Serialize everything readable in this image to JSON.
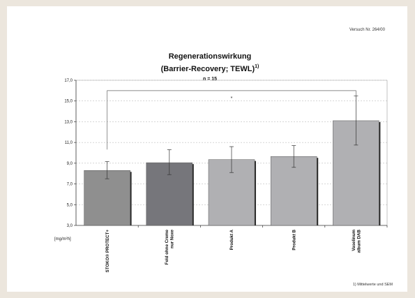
{
  "header": {
    "doc_number": "Versuch Nr. 264/00"
  },
  "chart_data": {
    "type": "bar",
    "title": "Regenerationswirkung",
    "subtitle": "(Barrier-Recovery; TEWL)",
    "subtitle_sup": "1)",
    "n_label": "n = 15",
    "ylabel": "[mg/m²h]",
    "ylim": [
      3.0,
      17.0
    ],
    "yticks": [
      "3,0",
      "5,0",
      "7,0",
      "9,0",
      "11,0",
      "13,0",
      "15,0",
      "17,0"
    ],
    "grid": true,
    "categories": [
      [
        "STOKO® PROTECT+"
      ],
      [
        "Feld ohne Creme",
        "nur Noxe"
      ],
      [
        "Produkt A"
      ],
      [
        "Produkt B"
      ],
      [
        "Vaselinum",
        "album DAB"
      ]
    ],
    "values": [
      8.3,
      9.05,
      9.35,
      9.65,
      13.1
    ],
    "error_low": [
      7.5,
      7.9,
      8.1,
      8.6,
      10.75
    ],
    "error_high": [
      9.15,
      10.3,
      10.6,
      10.7,
      15.5
    ],
    "bar_colors": [
      "#8f8f8f",
      "#76767b",
      "#b0b0b3",
      "#b0b0b3",
      "#b0b0b3"
    ],
    "significance": {
      "between": [
        0,
        4
      ],
      "marker": "*"
    },
    "footnote": "1) Mittelwerte und SEM"
  }
}
